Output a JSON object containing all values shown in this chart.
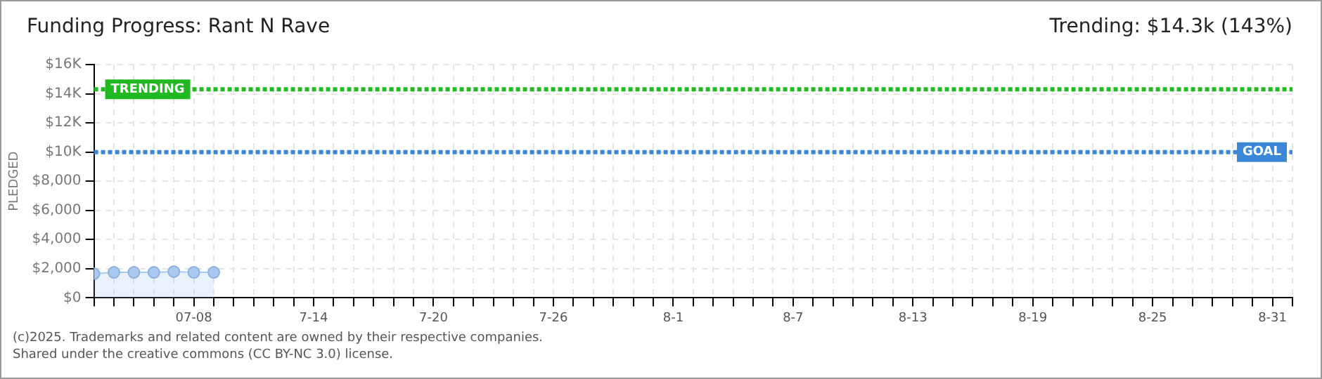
{
  "chart_data": {
    "type": "area",
    "title": "Funding Progress: Rant N Rave",
    "subtitle": "Trending: $14.3k (143%)",
    "ylabel": "PLEDGED",
    "x": [
      "--07-03",
      "--07-04",
      "--07-05",
      "--07-06",
      "--07-07",
      "--07-08",
      "--07-09"
    ],
    "series": [
      {
        "color": "#a9c9f0",
        "values": [
          1650,
          1750,
          1750,
          1750,
          1800,
          1750,
          1750
        ]
      }
    ],
    "xlim": [
      "--07-03",
      "--09-01"
    ],
    "xticks": [
      {
        "value": "--07-03",
        "label": null
      },
      {
        "value": "--07-04",
        "label": null
      },
      {
        "value": "--07-05",
        "label": null
      },
      {
        "value": "--07-06",
        "label": null
      },
      {
        "value": "--07-07",
        "label": null
      },
      {
        "value": "--07-08",
        "label": "07-08"
      },
      {
        "value": "--07-09",
        "label": null
      },
      {
        "value": "--07-10",
        "label": null
      },
      {
        "value": "--07-11",
        "label": null
      },
      {
        "value": "--07-12",
        "label": null
      },
      {
        "value": "--07-13",
        "label": null
      },
      {
        "value": "--07-14",
        "label": "7-14"
      },
      {
        "value": "--07-15",
        "label": null
      },
      {
        "value": "--07-16",
        "label": null
      },
      {
        "value": "--07-17",
        "label": null
      },
      {
        "value": "--07-18",
        "label": null
      },
      {
        "value": "--07-19",
        "label": null
      },
      {
        "value": "--07-20",
        "label": "7-20"
      },
      {
        "value": "--07-21",
        "label": null
      },
      {
        "value": "--07-22",
        "label": null
      },
      {
        "value": "--07-23",
        "label": null
      },
      {
        "value": "--07-24",
        "label": null
      },
      {
        "value": "--07-25",
        "label": null
      },
      {
        "value": "--07-26",
        "label": "7-26"
      },
      {
        "value": "--07-27",
        "label": null
      },
      {
        "value": "--07-28",
        "label": null
      },
      {
        "value": "--07-29",
        "label": null
      },
      {
        "value": "--07-30",
        "label": null
      },
      {
        "value": "--07-31",
        "label": null
      },
      {
        "value": "--08-01",
        "label": "8-1"
      },
      {
        "value": "--08-02",
        "label": null
      },
      {
        "value": "--08-03",
        "label": null
      },
      {
        "value": "--08-04",
        "label": null
      },
      {
        "value": "--08-05",
        "label": null
      },
      {
        "value": "--08-06",
        "label": null
      },
      {
        "value": "--08-07",
        "label": "8-7"
      },
      {
        "value": "--08-08",
        "label": null
      },
      {
        "value": "--08-09",
        "label": null
      },
      {
        "value": "--08-10",
        "label": null
      },
      {
        "value": "--08-11",
        "label": null
      },
      {
        "value": "--08-12",
        "label": null
      },
      {
        "value": "--08-13",
        "label": "8-13"
      },
      {
        "value": "--08-14",
        "label": null
      },
      {
        "value": "--08-15",
        "label": null
      },
      {
        "value": "--08-16",
        "label": null
      },
      {
        "value": "--08-17",
        "label": null
      },
      {
        "value": "--08-18",
        "label": null
      },
      {
        "value": "--08-19",
        "label": "8-19"
      },
      {
        "value": "--08-20",
        "label": null
      },
      {
        "value": "--08-21",
        "label": null
      },
      {
        "value": "--08-22",
        "label": null
      },
      {
        "value": "--08-23",
        "label": null
      },
      {
        "value": "--08-24",
        "label": null
      },
      {
        "value": "--08-25",
        "label": "8-25"
      },
      {
        "value": "--08-26",
        "label": null
      },
      {
        "value": "--08-27",
        "label": null
      },
      {
        "value": "--08-28",
        "label": null
      },
      {
        "value": "--08-29",
        "label": null
      },
      {
        "value": "--08-30",
        "label": null
      },
      {
        "value": "--08-31",
        "label": "8-31"
      },
      {
        "value": "--09-01",
        "label": null
      }
    ],
    "ylim": [
      0,
      16000
    ],
    "yticks": [
      {
        "value": 0,
        "label": "$0"
      },
      {
        "value": 2000,
        "label": "$2,000"
      },
      {
        "value": 4000,
        "label": "$4,000"
      },
      {
        "value": 6000,
        "label": "$6,000"
      },
      {
        "value": 8000,
        "label": "$8,000"
      },
      {
        "value": 10000,
        "label": "$10K"
      },
      {
        "value": 12000,
        "label": "$12K"
      },
      {
        "value": 14000,
        "label": "$14K"
      },
      {
        "value": 16000,
        "label": "$16K"
      }
    ],
    "ref_lines": [
      {
        "axis": "y",
        "value": 14300,
        "label": "TRENDING",
        "color": "#22b822",
        "line_style": "dotted"
      },
      {
        "axis": "y",
        "value": 10000,
        "label": "GOAL",
        "color": "#3a87d8",
        "line_style": "dotted"
      }
    ],
    "grid": true,
    "marker": "circle",
    "legend": false,
    "annotations": [
      "(c)2025. Trademarks and related content are owned by their respective companies.",
      "Shared under the creative commons (CC BY-NC 3.0) license."
    ]
  }
}
